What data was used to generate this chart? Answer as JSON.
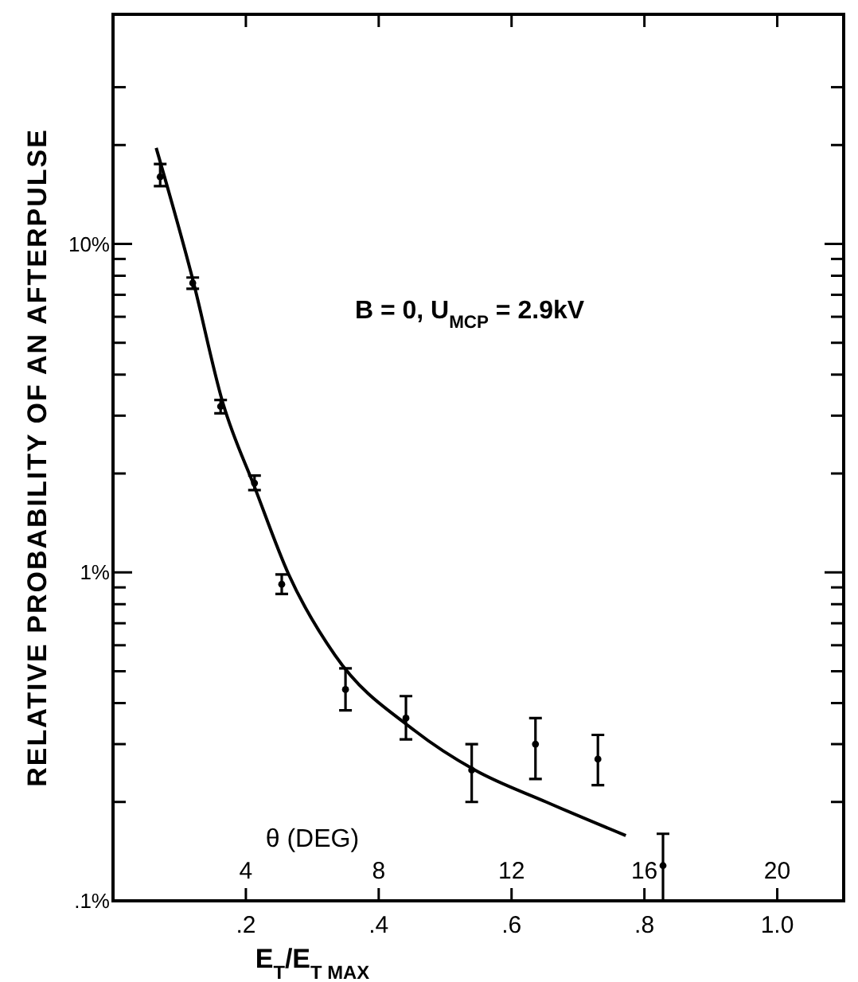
{
  "chart_data": {
    "type": "scatter",
    "xlabel": "E$_{T}$/E$_{T MAX}$",
    "ylabel": "RELATIVE PROBABILITY OF AN AFTERPULSE",
    "x2label": "θ (DEG)",
    "annotations": [
      "B = 0, U$_{MCP}$ = 2.9kV"
    ],
    "log": "y",
    "grid": false,
    "marker": "circle",
    "xlim": [
      0,
      1.1
    ],
    "xticks": [
      {
        "value": 0.2,
        "label": ".2"
      },
      {
        "value": 0.4,
        "label": ".4"
      },
      {
        "value": 0.6,
        "label": ".6"
      },
      {
        "value": 0.8,
        "label": ".8"
      },
      {
        "value": 1.0,
        "label": "1.0"
      }
    ],
    "x2lim": [
      0,
      22
    ],
    "x2ticks": [
      4,
      8,
      12,
      16,
      20
    ],
    "ylim": [
      0.1,
      50
    ],
    "yticks": [
      {
        "value": 0.1,
        "label": ".1%"
      },
      {
        "value": 0.2,
        "label": null
      },
      {
        "value": 0.3,
        "label": null
      },
      {
        "value": 0.4,
        "label": null
      },
      {
        "value": 0.5,
        "label": null
      },
      {
        "value": 0.6,
        "label": null
      },
      {
        "value": 0.7,
        "label": null
      },
      {
        "value": 0.8,
        "label": null
      },
      {
        "value": 0.9,
        "label": null
      },
      {
        "value": 1,
        "label": "1%"
      },
      {
        "value": 2,
        "label": null
      },
      {
        "value": 3,
        "label": null
      },
      {
        "value": 4,
        "label": null
      },
      {
        "value": 5,
        "label": null
      },
      {
        "value": 6,
        "label": null
      },
      {
        "value": 7,
        "label": null
      },
      {
        "value": 8,
        "label": null
      },
      {
        "value": 9,
        "label": null
      },
      {
        "value": 10,
        "label": "10%"
      },
      {
        "value": 20,
        "label": null
      },
      {
        "value": 30,
        "label": null
      }
    ],
    "series": [
      {
        "color": "#000000",
        "x": [
          0.071,
          0.12,
          0.162,
          0.213,
          0.254,
          0.35,
          0.441,
          0.54,
          0.636,
          0.73,
          0.828
        ],
        "values": [
          16,
          7.6,
          3.2,
          1.87,
          0.92,
          0.44,
          0.36,
          0.25,
          0.3,
          0.27,
          0.128
        ],
        "errors": [
          [
            15,
            17.5
          ],
          [
            7.3,
            7.9
          ],
          [
            3.05,
            3.35
          ],
          [
            1.78,
            1.97
          ],
          [
            0.86,
            0.985
          ],
          [
            0.38,
            0.51
          ],
          [
            0.31,
            0.42
          ],
          [
            0.2,
            0.3
          ],
          [
            0.235,
            0.36
          ],
          [
            0.225,
            0.32
          ],
          [
            0.1,
            0.16
          ]
        ]
      },
      {
        "type": "line",
        "color": "#000000",
        "marker": "none",
        "line_style": "solid",
        "x": [
          0.065,
          0.12,
          0.165,
          0.214,
          0.264,
          0.334,
          0.454,
          0.545,
          0.652,
          0.772
        ],
        "values": [
          19.6,
          7.8,
          3.3,
          1.8,
          0.99,
          0.56,
          0.33,
          0.25,
          0.2,
          0.158
        ]
      }
    ]
  }
}
